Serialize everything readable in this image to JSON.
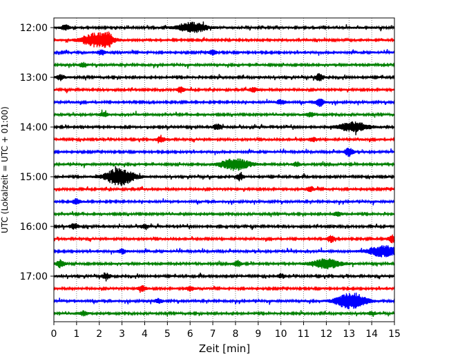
{
  "chart_data": {
    "type": "line",
    "title": "",
    "xlabel": "Zeit  [min]",
    "ylabel": "UTC (Lokalzeit = UTC + 01:00)",
    "xlim": [
      0,
      15
    ],
    "xticks": [
      0,
      1,
      2,
      3,
      4,
      5,
      6,
      7,
      8,
      9,
      10,
      11,
      12,
      13,
      14,
      15
    ],
    "grid": "vertical dotted",
    "colors": [
      "#000000",
      "#ff0000",
      "#0000ff",
      "#008000"
    ],
    "yticks": [
      {
        "label": "12:00",
        "row": 0
      },
      {
        "label": "13:00",
        "row": 4
      },
      {
        "label": "14:00",
        "row": 8
      },
      {
        "label": "15:00",
        "row": 12
      },
      {
        "label": "16:00",
        "row": 16
      },
      {
        "label": "17:00",
        "row": 20
      }
    ],
    "rows": [
      {
        "start": "12:00",
        "color": "#000000",
        "events": [
          [
            0.5,
            4
          ],
          [
            6.1,
            7
          ]
        ]
      },
      {
        "start": "12:15",
        "color": "#ff0000",
        "events": [
          [
            1.9,
            10
          ],
          [
            2.4,
            6
          ]
        ]
      },
      {
        "start": "12:30",
        "color": "#0000ff",
        "events": [
          [
            2.1,
            3
          ],
          [
            7.0,
            3
          ]
        ]
      },
      {
        "start": "12:45",
        "color": "#008000",
        "events": [
          [
            1.3,
            3
          ]
        ]
      },
      {
        "start": "13:00",
        "color": "#000000",
        "events": [
          [
            0.3,
            4
          ],
          [
            11.7,
            5
          ]
        ]
      },
      {
        "start": "13:15",
        "color": "#ff0000",
        "events": [
          [
            5.6,
            4
          ],
          [
            8.8,
            3
          ]
        ]
      },
      {
        "start": "13:30",
        "color": "#0000ff",
        "events": [
          [
            10.0,
            3
          ],
          [
            11.7,
            6
          ]
        ]
      },
      {
        "start": "13:45",
        "color": "#008000",
        "events": [
          [
            2.2,
            3
          ],
          [
            11.3,
            3
          ]
        ]
      },
      {
        "start": "14:00",
        "color": "#000000",
        "events": [
          [
            7.2,
            4
          ],
          [
            13.2,
            7
          ]
        ]
      },
      {
        "start": "14:15",
        "color": "#ff0000",
        "events": [
          [
            4.7,
            4
          ],
          [
            11.4,
            3
          ]
        ]
      },
      {
        "start": "14:30",
        "color": "#0000ff",
        "events": [
          [
            13.0,
            6
          ]
        ]
      },
      {
        "start": "14:45",
        "color": "#008000",
        "events": [
          [
            8.0,
            8
          ],
          [
            10.7,
            3
          ]
        ]
      },
      {
        "start": "15:00",
        "color": "#000000",
        "events": [
          [
            2.9,
            12
          ],
          [
            8.2,
            4
          ]
        ]
      },
      {
        "start": "15:15",
        "color": "#ff0000",
        "events": [
          [
            11.3,
            3
          ]
        ]
      },
      {
        "start": "15:30",
        "color": "#0000ff",
        "events": [
          [
            1.0,
            4
          ]
        ]
      },
      {
        "start": "15:45",
        "color": "#008000",
        "events": [
          [
            12.5,
            3
          ]
        ]
      },
      {
        "start": "16:00",
        "color": "#000000",
        "events": [
          [
            0.9,
            4
          ],
          [
            4.0,
            3
          ]
        ]
      },
      {
        "start": "16:15",
        "color": "#ff0000",
        "events": [
          [
            12.2,
            5
          ],
          [
            14.9,
            5
          ]
        ]
      },
      {
        "start": "16:30",
        "color": "#0000ff",
        "events": [
          [
            3.0,
            3
          ],
          [
            14.5,
            8
          ]
        ]
      },
      {
        "start": "16:45",
        "color": "#008000",
        "events": [
          [
            0.3,
            6
          ],
          [
            8.1,
            4
          ],
          [
            12.0,
            7
          ]
        ]
      },
      {
        "start": "17:00",
        "color": "#000000",
        "events": [
          [
            2.3,
            4
          ],
          [
            10.0,
            3
          ]
        ]
      },
      {
        "start": "17:15",
        "color": "#ff0000",
        "events": [
          [
            3.9,
            4
          ],
          [
            6.0,
            3
          ]
        ]
      },
      {
        "start": "17:30",
        "color": "#0000ff",
        "events": [
          [
            4.6,
            3
          ],
          [
            13.1,
            12
          ]
        ]
      },
      {
        "start": "17:45",
        "color": "#008000",
        "events": [
          [
            1.3,
            3
          ],
          [
            14.0,
            2
          ]
        ]
      }
    ]
  }
}
